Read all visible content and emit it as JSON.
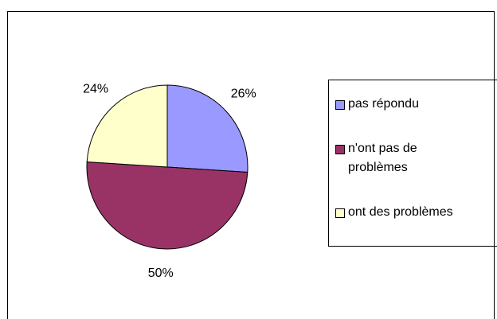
{
  "chart_data": {
    "type": "pie",
    "categories": [
      "pas répondu",
      "n'ont pas de problèmes",
      "ont des problèmes"
    ],
    "values": [
      26,
      50,
      24
    ],
    "value_labels": [
      "26%",
      "50%",
      "24%"
    ],
    "colors": [
      "#9999ff",
      "#993366",
      "#ffffcc"
    ],
    "legend": "right"
  }
}
